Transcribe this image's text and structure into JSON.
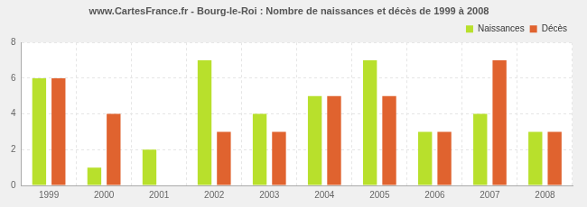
{
  "chart_data": {
    "type": "bar",
    "title": "www.CartesFrance.fr - Bourg-le-Roi : Nombre de naissances et décès de 1999 à 2008",
    "categories": [
      "1999",
      "2000",
      "2001",
      "2002",
      "2003",
      "2004",
      "2005",
      "2006",
      "2007",
      "2008"
    ],
    "series": [
      {
        "name": "Naissances",
        "color": "#b8e02c",
        "values": [
          6,
          1,
          2,
          7,
          4,
          5,
          7,
          3,
          4,
          3
        ]
      },
      {
        "name": "Décès",
        "color": "#e0632f",
        "values": [
          6,
          4,
          0,
          3,
          3,
          5,
          5,
          3,
          7,
          3
        ]
      }
    ],
    "ylim": [
      0,
      8
    ],
    "yticks": [
      0,
      2,
      4,
      6,
      8
    ],
    "grid": true,
    "legend": "top-right"
  }
}
